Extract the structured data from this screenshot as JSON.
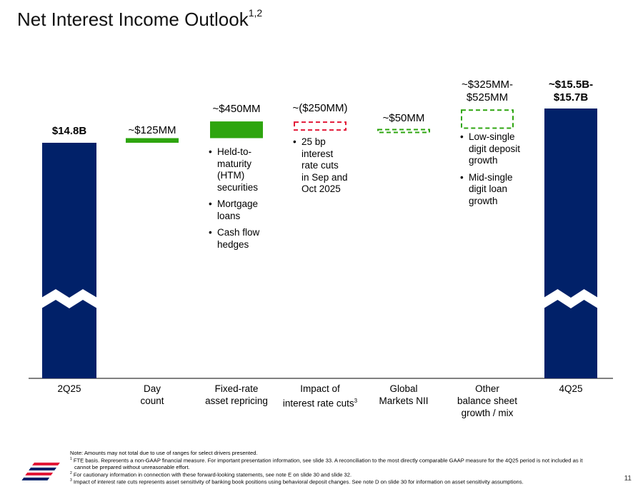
{
  "title": {
    "text": "Net Interest Income Outlook",
    "superscript": "1,2"
  },
  "chart_data": {
    "type": "waterfall",
    "title": "Net Interest Income Outlook",
    "units": "USD",
    "axis_break": true,
    "categories": [
      {
        "key": "2Q25",
        "lines": [
          "2Q25"
        ],
        "label": "$14.8B",
        "value_b": 14.8,
        "kind": "total"
      },
      {
        "key": "day",
        "lines": [
          "Day",
          "count"
        ],
        "label": "~$125MM",
        "value_mm": 125,
        "kind": "increase"
      },
      {
        "key": "fixed",
        "lines": [
          "Fixed-rate",
          "asset repricing"
        ],
        "label": "~$450MM",
        "value_mm": 450,
        "kind": "increase",
        "bullets": [
          [
            "Held-to-",
            "maturity",
            "(HTM)",
            "securities"
          ],
          [
            "Mortgage",
            "loans"
          ],
          [
            "Cash flow",
            "hedges"
          ]
        ]
      },
      {
        "key": "rates",
        "lines": [
          "Impact of",
          "interest rate cuts"
        ],
        "sup": "3",
        "label": "~($250MM)",
        "value_mm": -250,
        "kind": "decrease",
        "bullets": [
          [
            "25 bp",
            "interest",
            "rate cuts",
            "in Sep and",
            "Oct 2025"
          ]
        ]
      },
      {
        "key": "gm",
        "lines": [
          "Global",
          "Markets NII"
        ],
        "label": "~$50MM",
        "value_mm": 50,
        "kind": "increase-dashed"
      },
      {
        "key": "other",
        "lines": [
          "Other",
          "balance sheet",
          "growth / mix"
        ],
        "label_lines": [
          "~$325MM-",
          "$525MM"
        ],
        "range_mm": [
          325,
          525
        ],
        "kind": "range-dashed",
        "bullets": [
          [
            "Low-single",
            "digit deposit",
            "growth"
          ],
          [
            "Mid-single",
            "digit loan",
            "growth"
          ]
        ]
      },
      {
        "key": "4Q25",
        "lines": [
          "4Q25"
        ],
        "label_lines": [
          "~$15.5B-",
          "$15.7B"
        ],
        "range_b": [
          15.5,
          15.7
        ],
        "kind": "total"
      }
    ],
    "colors": {
      "total": "#012169",
      "increase": "#2EA50F",
      "decrease": "#E31837",
      "axis": "#000000"
    }
  },
  "footnotes": {
    "note": "Note: Amounts may not total due to use of ranges for select drivers presented.",
    "fn1a": "FTE basis. Represents a non-GAAP financial measure. For important presentation information, see slide 33. A reconciliation to the most directly comparable GAAP measure for the 4Q25 period is not included as it",
    "fn1b": "cannot be prepared without unreasonable effort.",
    "fn2": "For cautionary information in connection with these forward-looking statements, see note E on slide 30 and slide 32.",
    "fn3": "Impact of interest rate cuts represents asset sensitivity of banking book positions using behavioral deposit changes. See note D on slide 30 for information on asset sensitivity assumptions.",
    "sup1": "1",
    "sup2": "2",
    "sup3": "3"
  },
  "page_number": "11"
}
